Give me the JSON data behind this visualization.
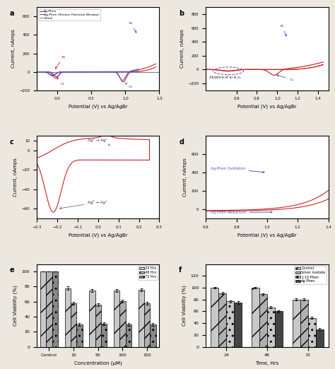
{
  "fig_bg": "#ede8df",
  "panel_bg": "#ffffff",
  "panel_a": {
    "label": "a",
    "xlabel": "Potential (V) vs Ag/AgBr",
    "ylabel": "Current, nAmps",
    "xlim": [
      -0.3,
      1.5
    ],
    "ylim": [
      -200,
      700
    ],
    "yticks": [
      -200,
      0,
      200,
      400,
      600
    ],
    "xticks": [
      0.0,
      0.5,
      1.0,
      1.5
    ]
  },
  "panel_b": {
    "label": "b",
    "xlabel": "Potential (V) vs Ag/AgBr",
    "ylabel": "Current, nAmps",
    "xlim": [
      0.3,
      1.5
    ],
    "ylim": [
      -300,
      900
    ],
    "yticks": [
      -200,
      0,
      200,
      400,
      600,
      800
    ],
    "xticks": [
      0.6,
      0.8,
      1.0,
      1.2,
      1.4
    ]
  },
  "panel_c": {
    "label": "c",
    "xlabel": "Potential (V) vs Ag/AgBr",
    "ylabel": "Current, nAmps",
    "xlim": [
      -0.3,
      0.3
    ],
    "ylim": [
      -70,
      15
    ],
    "yticks": [
      -60,
      -40,
      -20,
      0,
      10
    ],
    "xticks": [
      -0.3,
      -0.2,
      -0.1,
      0.0,
      0.1,
      0.2,
      0.3
    ]
  },
  "panel_d": {
    "label": "d",
    "xlabel": "Potential (V) vs Ag/AgBr",
    "ylabel": "Current, nAmps",
    "xlim": [
      0.6,
      1.4
    ],
    "ylim": [
      -100,
      800
    ],
    "yticks": [
      0,
      200,
      400,
      600
    ],
    "xticks": [
      0.6,
      0.8,
      1.0,
      1.2,
      1.4
    ]
  },
  "panel_e": {
    "label": "e",
    "xlabel": "Concentration (μM)",
    "ylabel": "Cell Viability (%)",
    "xlim": [
      -0.5,
      4.5
    ],
    "ylim": [
      0,
      110
    ],
    "yticks": [
      0,
      20,
      40,
      60,
      80,
      100
    ],
    "categories": [
      "Control",
      "10",
      "50",
      "100",
      "150"
    ],
    "groups": [
      "24 Hrs",
      "48 Hrs",
      "72 Hrs"
    ],
    "values": [
      [
        100,
        78,
        75,
        75,
        76
      ],
      [
        100,
        58,
        56,
        61,
        58
      ],
      [
        100,
        30,
        31,
        30,
        30
      ]
    ],
    "errors": [
      [
        0,
        2,
        2,
        2,
        2
      ],
      [
        0,
        2,
        2,
        2,
        2
      ],
      [
        0,
        2,
        2,
        2,
        2
      ]
    ],
    "hatches": [
      "/",
      "//",
      ".."
    ],
    "colors": [
      "#c8c8c8",
      "#b0b0b0",
      "#888888"
    ]
  },
  "panel_f": {
    "label": "f",
    "xlabel": "Time, Hrs",
    "ylabel": "Cell Viability (%)",
    "xlim": [
      -0.5,
      2.5
    ],
    "ylim": [
      0,
      140
    ],
    "yticks": [
      0,
      20,
      40,
      60,
      80,
      100,
      120
    ],
    "categories": [
      "24",
      "48",
      "72"
    ],
    "groups": [
      "Control",
      "Silver Acetate",
      "1,10-Phen",
      "Ag-Phen"
    ],
    "values": [
      [
        100,
        100,
        80
      ],
      [
        91,
        89,
        80
      ],
      [
        77,
        67,
        49
      ],
      [
        75,
        60,
        30
      ]
    ],
    "errors": [
      [
        1,
        1,
        2
      ],
      [
        2,
        2,
        2
      ],
      [
        2,
        2,
        2
      ],
      [
        2,
        2,
        2
      ]
    ],
    "hatches": [
      "/",
      "//",
      "..",
      ""
    ],
    "colors": [
      "#c8c8c8",
      "#b0b0b0",
      "#c8c8c8",
      "#444444"
    ]
  }
}
